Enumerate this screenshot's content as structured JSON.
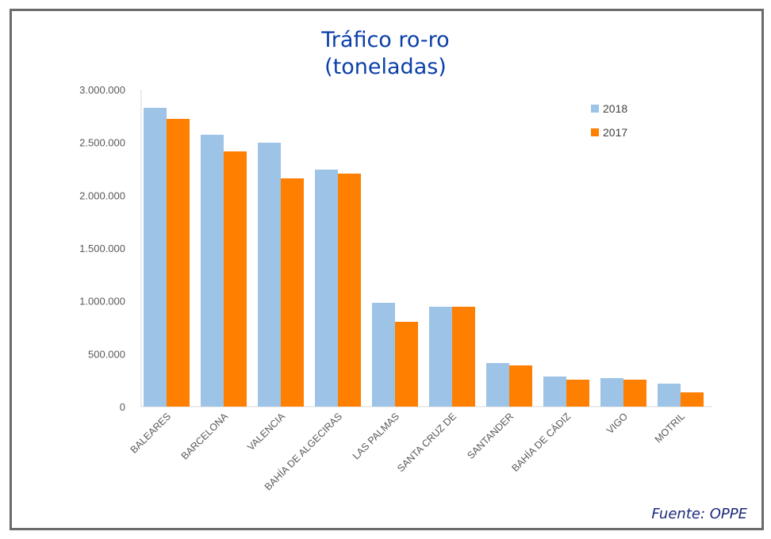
{
  "chart_data": {
    "type": "bar",
    "title": [
      "Tráfico ro-ro",
      "(toneladas)"
    ],
    "categories": [
      "BALEARES",
      "BARCELONA",
      "VALENCIA",
      "BAHÍA DE ALGECIRAS",
      "LAS PALMAS",
      "SANTA CRUZ DE",
      "SANTANDER",
      "BAHÍA DE CÁDIZ",
      "VIGO",
      "MOTRIL"
    ],
    "series": [
      {
        "name": "2018",
        "color": "#9dc3e6",
        "values": [
          2827500,
          2572500,
          2497500,
          2242500,
          982500,
          945000,
          412500,
          285000,
          270000,
          217500
        ]
      },
      {
        "name": "2017",
        "color": "#ff7f00",
        "values": [
          2722500,
          2415000,
          2160000,
          2205000,
          802500,
          945000,
          390000,
          255000,
          255000,
          135000
        ]
      }
    ],
    "ylim": [
      0,
      3000000
    ],
    "yticks": [
      0,
      500000,
      1000000,
      1500000,
      2000000,
      2500000,
      3000000
    ],
    "ytick_labels": [
      "0",
      "500.000",
      "1.000.000",
      "1.500.000",
      "2.000.000",
      "2.500.000",
      "3.000.000"
    ],
    "xlabel": "",
    "ylabel": "",
    "legend": "top-right",
    "grid": false
  },
  "source": "Fuente: OPPE"
}
